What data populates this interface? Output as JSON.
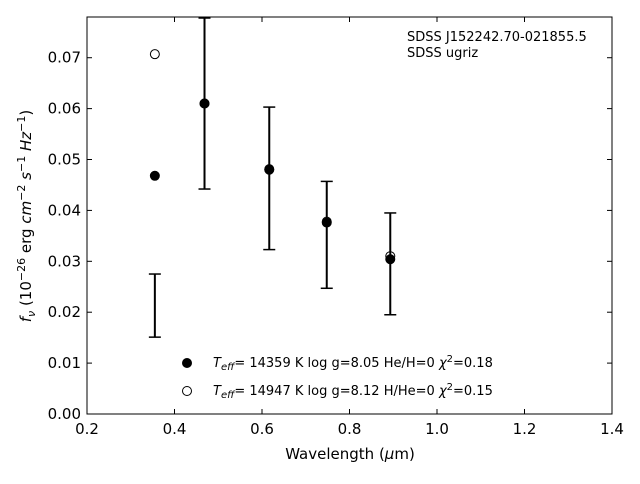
{
  "chart_data": {
    "type": "scatter",
    "title": "",
    "xlabel": "Wavelength (μm)",
    "ylabel": "f_ν (10^-26 erg cm^-2 s^-1 Hz^-1)",
    "xlim": [
      0.2,
      1.4
    ],
    "ylim": [
      0.0,
      0.078
    ],
    "xticks": [
      0.2,
      0.4,
      0.6,
      0.8,
      1.0,
      1.2,
      1.4
    ],
    "yticks": [
      0.0,
      0.01,
      0.02,
      0.03,
      0.04,
      0.05,
      0.06,
      0.07
    ],
    "xtick_labels": [
      "0.2",
      "0.4",
      "0.6",
      "0.8",
      "1.0",
      "1.2",
      "1.4"
    ],
    "ytick_labels": [
      "0.00",
      "0.01",
      "0.02",
      "0.03",
      "0.04",
      "0.05",
      "0.06",
      "0.07"
    ],
    "grid": false,
    "annotations": [
      "SDSS J152242.70-021855.5",
      "SDSS ugriz"
    ],
    "observed": {
      "x": [
        0.3551,
        0.4686,
        0.6166,
        0.748,
        0.8932
      ],
      "y": [
        0.0213,
        0.061,
        0.0463,
        0.0352,
        0.0295
      ],
      "yerr": [
        0.0062,
        0.0168,
        0.014,
        0.0105,
        0.01
      ]
    },
    "series": [
      {
        "name": "T_eff= 14359 K  log g=8.05  He/H=0  χ²=0.18",
        "marker": "filled-circle",
        "x": [
          0.3551,
          0.4686,
          0.6166,
          0.748,
          0.8932
        ],
        "y": [
          0.0468,
          0.061,
          0.048,
          0.0376,
          0.0304
        ]
      },
      {
        "name": "T_eff= 14947 K  log g=8.12  H/He=0  χ²=0.15",
        "marker": "open-circle",
        "x": [
          0.3551,
          0.4686,
          0.6166,
          0.748,
          0.8932
        ],
        "y": [
          0.0707,
          0.061,
          0.0481,
          0.0378,
          0.031
        ]
      }
    ],
    "legend": {
      "placement": "lower-center",
      "entries": [
        {
          "marker": "filled-circle",
          "teff": "14359 K",
          "logg": "log g=8.05",
          "comp": "He/H=0",
          "chi": "=0.18"
        },
        {
          "marker": "open-circle",
          "teff": "14947 K",
          "logg": "log g=8.12",
          "comp": "H/He=0",
          "chi": "=0.15"
        }
      ]
    }
  }
}
